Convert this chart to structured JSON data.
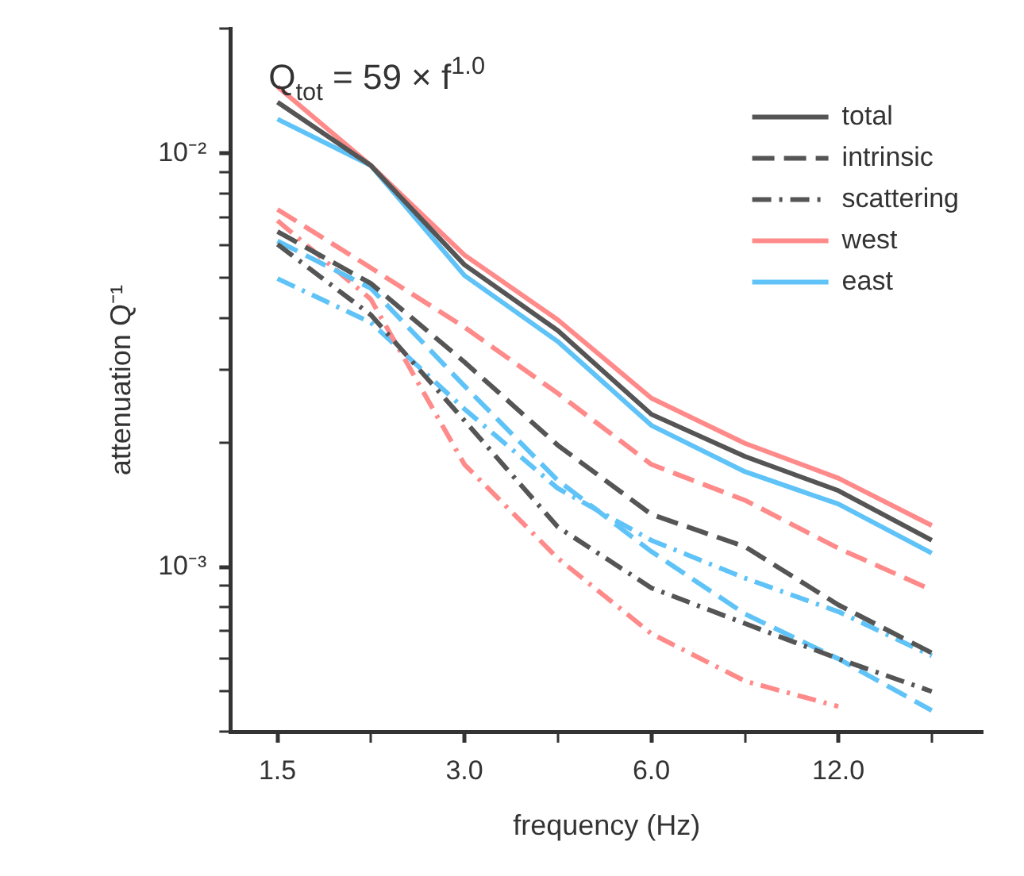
{
  "chart_data": {
    "type": "line",
    "xlabel": "frequency (Hz)",
    "ylabel": "attenuation Q⁻¹",
    "annotations": [
      "Q$_{tot}$ = 59 × f$^{1.0}$"
    ],
    "log": "xy",
    "grid": false,
    "legend": "top right",
    "marker": "none",
    "x": [
      1.5,
      2.12,
      3,
      4.24,
      6,
      8.49,
      12,
      16.97
    ],
    "xlim": [
      1.26,
      20.5
    ],
    "xticks": [
      1.5,
      {
        "value": 2.12,
        "label": null
      },
      {
        "value": 3,
        "label": "3.0"
      },
      {
        "value": 4.24,
        "label": null
      },
      {
        "value": 6,
        "label": "6.0"
      },
      {
        "value": 8.49,
        "label": null
      },
      {
        "value": 12,
        "label": "12.0"
      },
      {
        "value": 16.97,
        "label": null
      }
    ],
    "ylim": [
      0.0004,
      0.02
    ],
    "yticks": [
      {
        "value": 0.0004,
        "label": null
      },
      {
        "value": 0.0005,
        "label": null
      },
      {
        "value": 0.0006,
        "label": null
      },
      {
        "value": 0.0007,
        "label": null
      },
      {
        "value": 0.0008,
        "label": null
      },
      {
        "value": 0.0009,
        "label": null
      },
      {
        "value": 0.001,
        "label": "10⁻³"
      },
      {
        "value": 0.002,
        "label": null
      },
      {
        "value": 0.003,
        "label": null
      },
      {
        "value": 0.004,
        "label": null
      },
      {
        "value": 0.005,
        "label": null
      },
      {
        "value": 0.006,
        "label": null
      },
      {
        "value": 0.007,
        "label": null
      },
      {
        "value": 0.008,
        "label": null
      },
      {
        "value": 0.009,
        "label": null
      },
      {
        "value": 0.01,
        "label": "10⁻²"
      },
      {
        "value": 0.02,
        "label": null
      }
    ],
    "series": [
      {
        "name": "total",
        "color": "#555555",
        "line_style": "solid",
        "values": [
          0.0133,
          0.00935,
          0.00538,
          0.00373,
          0.00234,
          0.00185,
          0.00153,
          0.00116
        ]
      },
      {
        "name": "intrinsic",
        "color": "#555555",
        "line_style": "dashed",
        "values": [
          0.00647,
          0.00485,
          0.00313,
          0.00197,
          0.00134,
          0.00112,
          0.00081,
          0.00062
        ]
      },
      {
        "name": "scattering",
        "color": "#555555",
        "line_style": "dashdot",
        "values": [
          0.00603,
          0.00407,
          0.00226,
          0.00125,
          0.00089,
          0.00073,
          0.0006,
          0.0005
        ]
      },
      {
        "name": "west",
        "color": "#ff8a8a",
        "line_style": "solid",
        "values": [
          0.0145,
          0.00935,
          0.00568,
          0.00396,
          0.00256,
          0.00199,
          0.00164,
          0.00126
        ]
      },
      {
        "name": "east",
        "color": "#5fc3f7",
        "line_style": "solid",
        "values": [
          0.0121,
          0.00935,
          0.00507,
          0.00351,
          0.0022,
          0.0017,
          0.00142,
          0.00108
        ]
      },
      {
        "color": "#ff8a8a",
        "line_style": "dashed",
        "values": [
          0.00732,
          0.00529,
          0.0038,
          0.00263,
          0.00177,
          0.00145,
          0.00111,
          0.00088
        ]
      },
      {
        "color": "#5fc3f7",
        "line_style": "dashed",
        "values": [
          0.00614,
          0.00472,
          0.00274,
          0.00162,
          0.00109,
          0.00077,
          0.0006,
          0.00045
        ]
      },
      {
        "color": "#ff8a8a",
        "line_style": "dashdot",
        "values": [
          0.00688,
          0.00444,
          0.00177,
          0.00105,
          0.00069,
          0.00053,
          0.00046,
          null
        ]
      },
      {
        "color": "#5fc3f7",
        "line_style": "dashdot",
        "values": [
          0.00498,
          0.0039,
          0.00241,
          0.00155,
          0.00116,
          0.00094,
          0.00078,
          0.00061
        ]
      }
    ]
  }
}
